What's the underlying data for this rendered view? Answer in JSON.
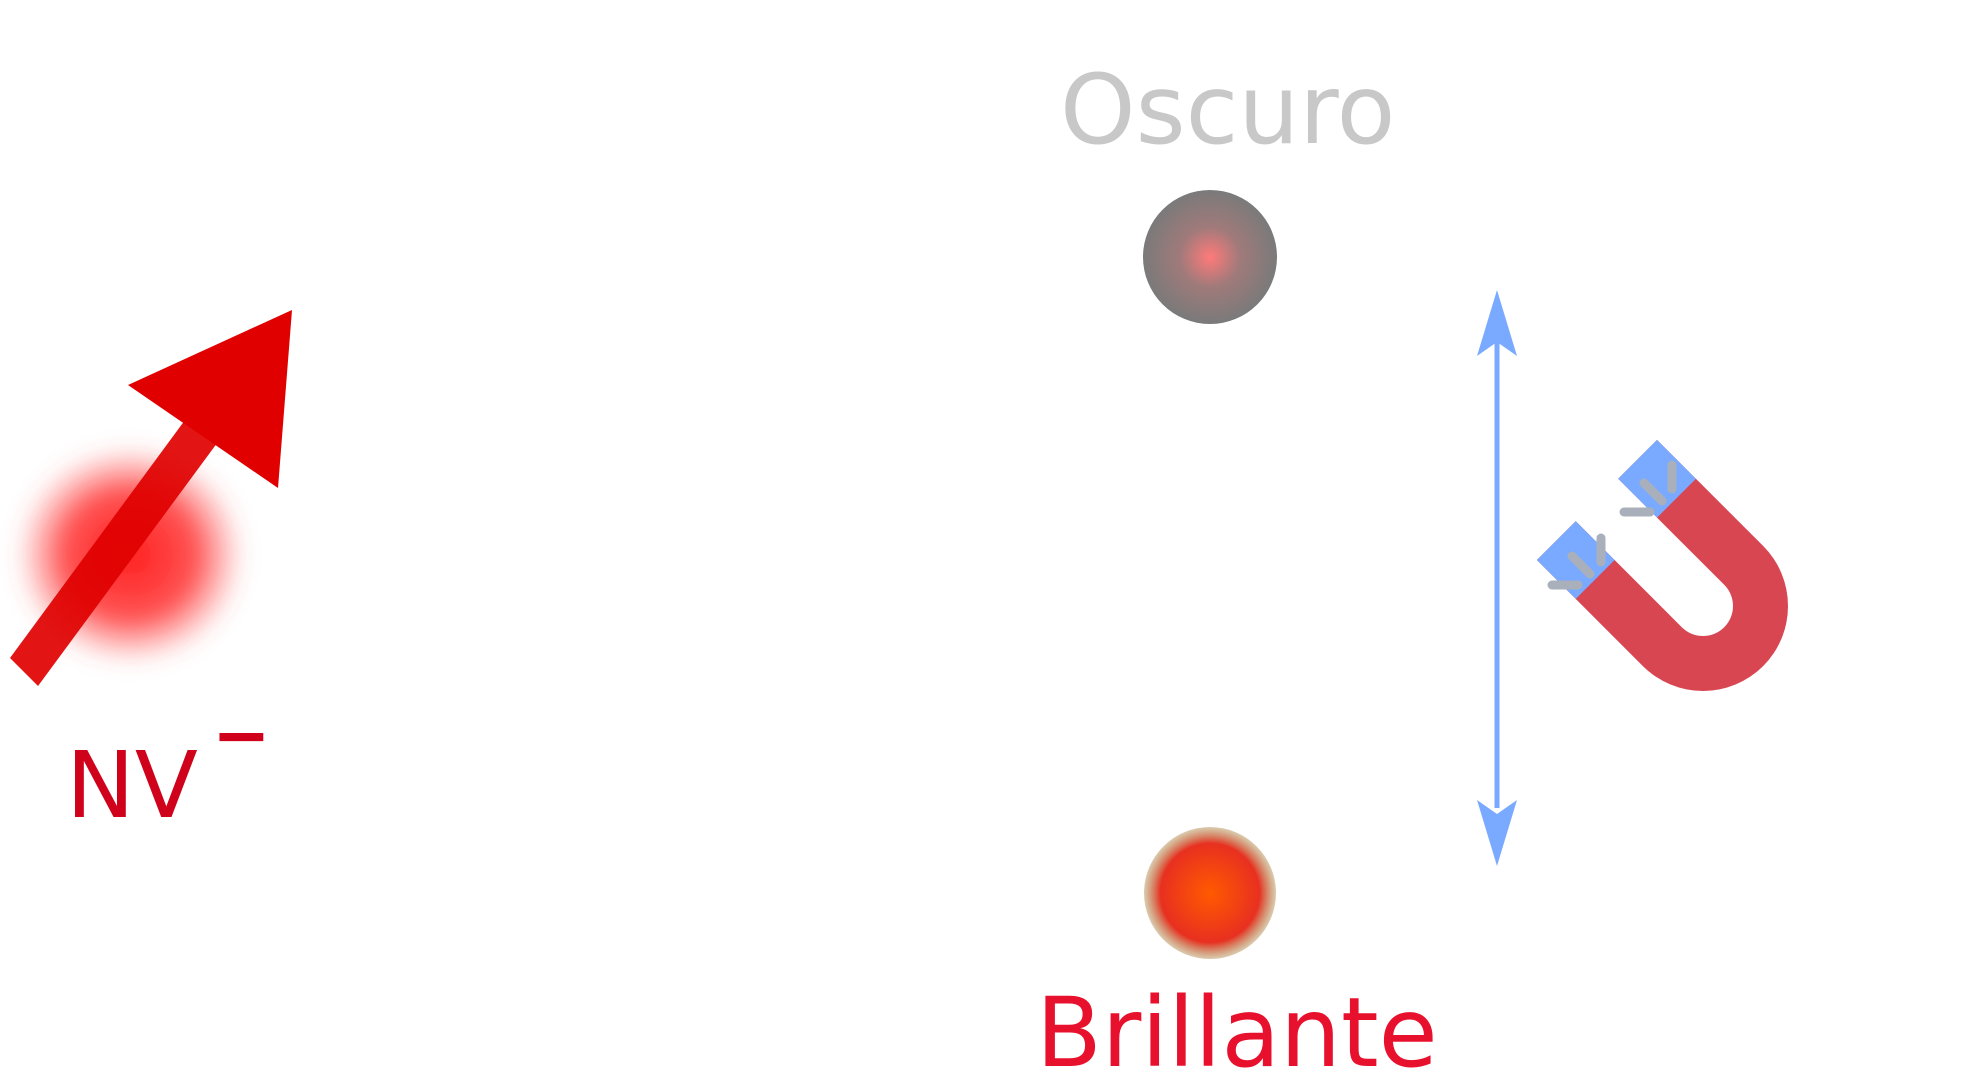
{
  "labels": {
    "dark_state": "Oscuro",
    "bright_state": "Brillante",
    "center": "NV",
    "center_charge": "−"
  },
  "colors": {
    "primary_red": "#e00000",
    "label_red": "#d0021b",
    "dark_label_gray": "#c8c8c8",
    "dark_sphere": "#808080",
    "bright_sphere_core": "#ff4a00",
    "bright_sphere_rim": "#a57d38",
    "transition_arrow_blue": "#7aaaff",
    "magnet_red": "#d84652",
    "magnet_pole_blue": "#7aaaff",
    "field_line_gray": "#a9b0bb"
  },
  "icons": {
    "spin": "spin-arrow-icon",
    "magnet": "horseshoe-magnet-icon",
    "transition": "double-headed-arrow-icon"
  }
}
